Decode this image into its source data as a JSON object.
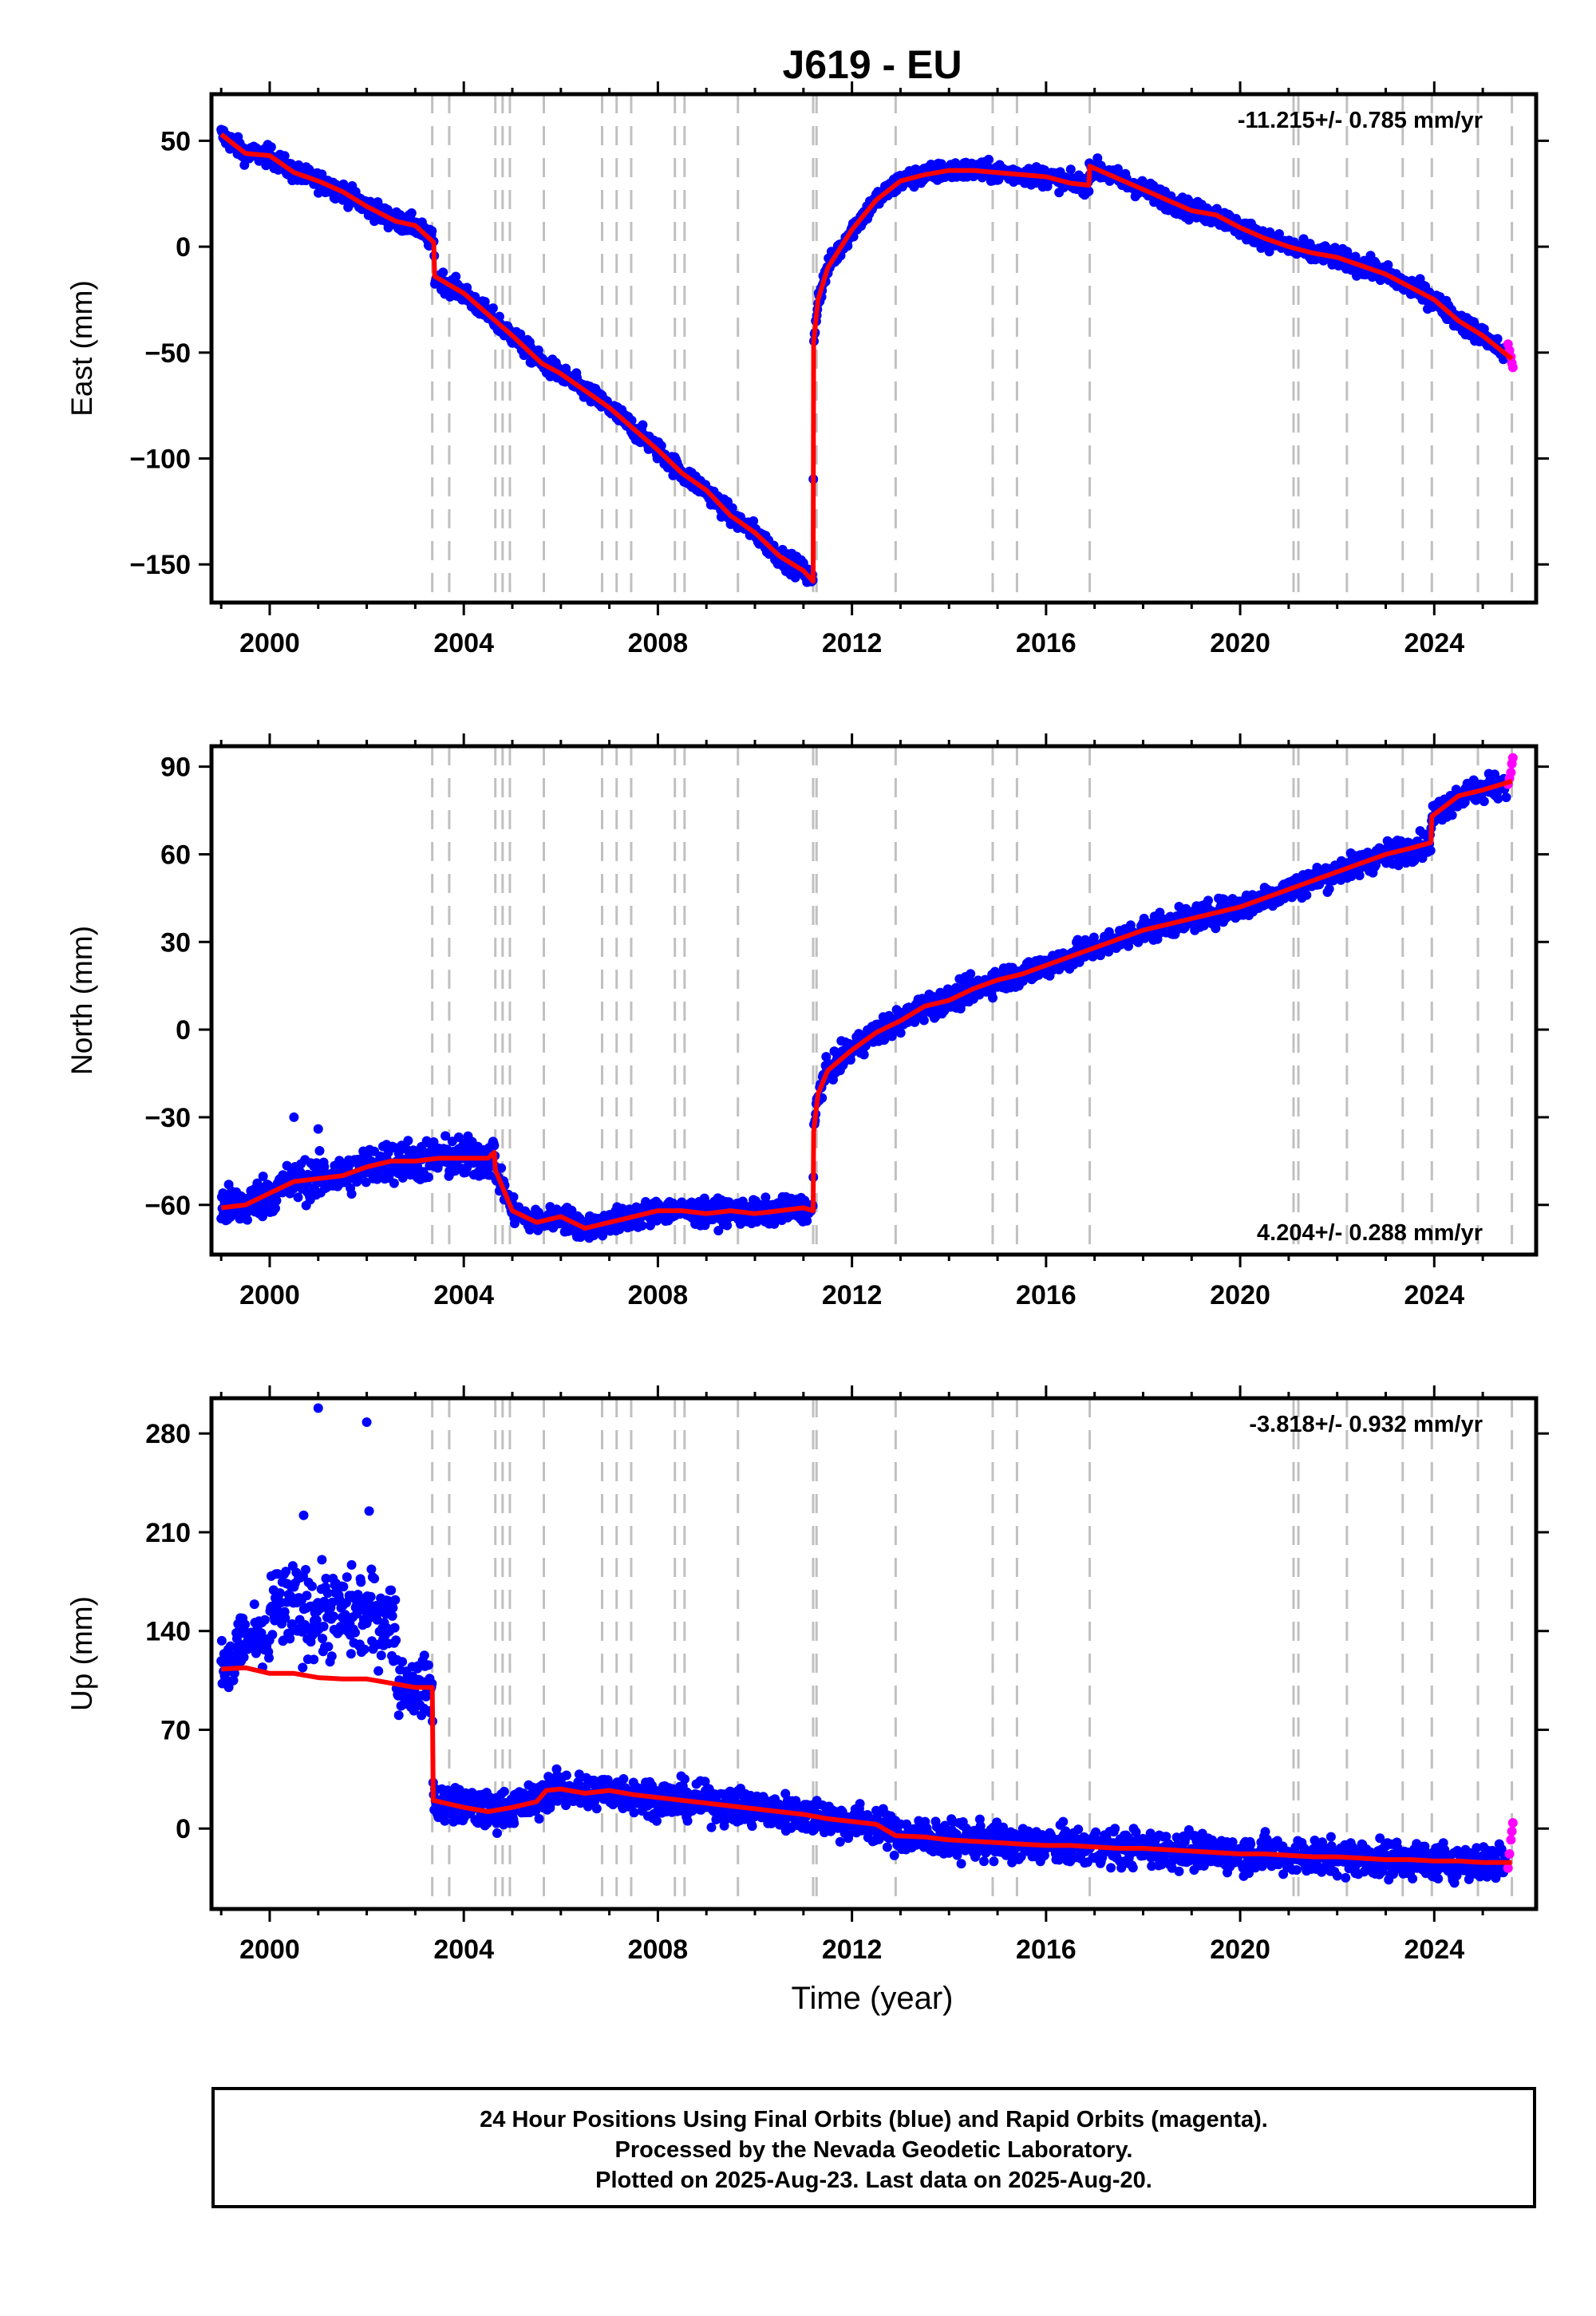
{
  "title": "J619 - EU",
  "xlabel": "Time (year)",
  "footer": {
    "line1": "24 Hour Positions Using Final Orbits (blue) and Rapid Orbits (magenta).",
    "line2": "Processed by the Nevada Geodetic Laboratory.",
    "line3": "Plotted on 2025-Aug-23. Last data on 2025-Aug-20."
  },
  "colors": {
    "final_orbits": "#0000ff",
    "rapid_orbits": "#ff00ff",
    "model": "#ff0000",
    "event_lines": "#c0c0c0"
  },
  "chart_data": [
    {
      "type": "scatter",
      "name": "east",
      "ylabel": "East (mm)",
      "rate": "-11.215+/- 0.785 mm/yr",
      "rate_position": "top-right",
      "xlim": [
        1998.8,
        2026.1
      ],
      "ylim": [
        -168,
        72
      ],
      "yticks": [
        50,
        0,
        -50,
        -100,
        -150
      ],
      "xticks": [
        2000,
        2004,
        2008,
        2012,
        2016,
        2020,
        2024
      ],
      "event_lines": [
        2003.35,
        2003.7,
        2004.65,
        2004.8,
        2004.95,
        2005.65,
        2006.85,
        2007.15,
        2007.45,
        2008.35,
        2008.55,
        2009.65,
        2011.2,
        2011.27,
        2012.9,
        2014.9,
        2015.4,
        2016.9,
        2021.1,
        2021.2,
        2022.2,
        2023.35,
        2023.95,
        2024.9,
        2025.6
      ],
      "model": [
        [
          1999.0,
          53
        ],
        [
          1999.5,
          44
        ],
        [
          2000.0,
          43
        ],
        [
          2000.5,
          35
        ],
        [
          2001.0,
          31
        ],
        [
          2001.5,
          26
        ],
        [
          2002.0,
          19
        ],
        [
          2002.6,
          12
        ],
        [
          2003.0,
          10
        ],
        [
          2003.38,
          2
        ],
        [
          2003.4,
          -14
        ],
        [
          2004.0,
          -22
        ],
        [
          2004.5,
          -32
        ],
        [
          2005.0,
          -42
        ],
        [
          2005.6,
          -55
        ],
        [
          2006.0,
          -60
        ],
        [
          2006.5,
          -68
        ],
        [
          2007.0,
          -76
        ],
        [
          2007.5,
          -86
        ],
        [
          2008.0,
          -96
        ],
        [
          2008.5,
          -107
        ],
        [
          2009.0,
          -115
        ],
        [
          2009.5,
          -127
        ],
        [
          2010.0,
          -135
        ],
        [
          2010.5,
          -146
        ],
        [
          2011.0,
          -153
        ],
        [
          2011.2,
          -158
        ],
        [
          2011.21,
          -45
        ],
        [
          2011.3,
          -25
        ],
        [
          2011.5,
          -10
        ],
        [
          2012.0,
          8
        ],
        [
          2012.5,
          22
        ],
        [
          2013.0,
          31
        ],
        [
          2013.5,
          34
        ],
        [
          2014.0,
          36
        ],
        [
          2014.5,
          36
        ],
        [
          2015.0,
          35
        ],
        [
          2015.5,
          34
        ],
        [
          2016.0,
          33
        ],
        [
          2016.5,
          30
        ],
        [
          2016.88,
          29
        ],
        [
          2016.9,
          38
        ],
        [
          2017.5,
          32
        ],
        [
          2018.0,
          27
        ],
        [
          2018.5,
          22
        ],
        [
          2019.0,
          17
        ],
        [
          2019.5,
          15
        ],
        [
          2020.0,
          9
        ],
        [
          2020.5,
          4
        ],
        [
          2021.0,
          0
        ],
        [
          2021.5,
          -3
        ],
        [
          2022.0,
          -5
        ],
        [
          2022.5,
          -9
        ],
        [
          2023.0,
          -13
        ],
        [
          2023.5,
          -19
        ],
        [
          2024.0,
          -25
        ],
        [
          2024.5,
          -35
        ],
        [
          2025.0,
          -42
        ],
        [
          2025.6,
          -53
        ]
      ],
      "rapid_points": [
        [
          2025.52,
          -46
        ],
        [
          2025.55,
          -49
        ],
        [
          2025.58,
          -52
        ],
        [
          2025.6,
          -55
        ],
        [
          2025.62,
          -57
        ]
      ]
    },
    {
      "type": "scatter",
      "name": "north",
      "ylabel": "North (mm)",
      "rate": "4.204+/- 0.288 mm/yr",
      "rate_position": "bottom-right",
      "xlim": [
        1998.8,
        2026.1
      ],
      "ylim": [
        -77,
        97
      ],
      "yticks": [
        90,
        60,
        30,
        0,
        -30,
        -60
      ],
      "xticks": [
        2000,
        2004,
        2008,
        2012,
        2016,
        2020,
        2024
      ],
      "event_lines": [
        2003.35,
        2003.7,
        2004.65,
        2004.8,
        2004.95,
        2005.65,
        2006.85,
        2007.15,
        2007.45,
        2008.35,
        2008.55,
        2009.65,
        2011.2,
        2011.27,
        2012.9,
        2014.9,
        2015.4,
        2016.9,
        2021.1,
        2021.2,
        2022.2,
        2023.35,
        2023.95,
        2024.9,
        2025.6
      ],
      "model": [
        [
          1999.0,
          -61
        ],
        [
          1999.5,
          -60
        ],
        [
          2000.0,
          -56
        ],
        [
          2000.5,
          -52
        ],
        [
          2001.0,
          -51
        ],
        [
          2001.5,
          -50
        ],
        [
          2002.0,
          -47
        ],
        [
          2002.5,
          -45
        ],
        [
          2003.0,
          -45
        ],
        [
          2003.5,
          -44
        ],
        [
          2004.0,
          -44
        ],
        [
          2004.5,
          -44
        ],
        [
          2004.63,
          -42
        ],
        [
          2004.65,
          -48
        ],
        [
          2005.0,
          -62
        ],
        [
          2005.5,
          -66
        ],
        [
          2006.0,
          -64
        ],
        [
          2006.5,
          -68
        ],
        [
          2007.0,
          -66
        ],
        [
          2007.5,
          -64
        ],
        [
          2008.0,
          -62
        ],
        [
          2008.5,
          -62
        ],
        [
          2009.0,
          -63
        ],
        [
          2009.5,
          -62
        ],
        [
          2010.0,
          -63
        ],
        [
          2010.5,
          -62
        ],
        [
          2011.0,
          -61
        ],
        [
          2011.2,
          -62
        ],
        [
          2011.21,
          -35
        ],
        [
          2011.3,
          -22
        ],
        [
          2011.5,
          -14
        ],
        [
          2012.0,
          -7
        ],
        [
          2012.5,
          -1
        ],
        [
          2013.0,
          3
        ],
        [
          2013.5,
          8
        ],
        [
          2014.0,
          10
        ],
        [
          2014.5,
          14
        ],
        [
          2015.0,
          17
        ],
        [
          2015.5,
          19
        ],
        [
          2016.0,
          22
        ],
        [
          2016.5,
          25
        ],
        [
          2017.0,
          28
        ],
        [
          2017.5,
          31
        ],
        [
          2018.0,
          34
        ],
        [
          2018.5,
          36
        ],
        [
          2019.0,
          38
        ],
        [
          2019.5,
          40
        ],
        [
          2020.0,
          42
        ],
        [
          2020.5,
          45
        ],
        [
          2021.0,
          48
        ],
        [
          2021.5,
          51
        ],
        [
          2022.0,
          54
        ],
        [
          2022.5,
          57
        ],
        [
          2023.0,
          60
        ],
        [
          2023.5,
          62
        ],
        [
          2023.93,
          64
        ],
        [
          2023.95,
          73
        ],
        [
          2024.5,
          80
        ],
        [
          2025.0,
          82
        ],
        [
          2025.6,
          85
        ]
      ],
      "rapid_points": [
        [
          2025.52,
          84
        ],
        [
          2025.55,
          86
        ],
        [
          2025.58,
          88
        ],
        [
          2025.6,
          91
        ],
        [
          2025.62,
          93
        ]
      ]
    },
    {
      "type": "scatter",
      "name": "up",
      "ylabel": "Up (mm)",
      "rate": "-3.818+/- 0.932 mm/yr",
      "rate_position": "top-right",
      "xlim": [
        1998.8,
        2026.1
      ],
      "ylim": [
        -57,
        305
      ],
      "yticks": [
        280,
        210,
        140,
        70,
        0
      ],
      "xticks": [
        2000,
        2004,
        2008,
        2012,
        2016,
        2020,
        2024
      ],
      "event_lines": [
        2003.35,
        2003.7,
        2004.65,
        2004.8,
        2004.95,
        2005.65,
        2006.85,
        2007.15,
        2007.45,
        2008.35,
        2008.55,
        2009.65,
        2011.2,
        2011.27,
        2012.9,
        2014.9,
        2015.4,
        2016.9,
        2021.1,
        2021.2,
        2022.2,
        2023.35,
        2023.95,
        2024.9,
        2025.6
      ],
      "model": [
        [
          1999.0,
          113
        ],
        [
          1999.5,
          114
        ],
        [
          2000.0,
          110
        ],
        [
          2000.5,
          110
        ],
        [
          2001.0,
          107
        ],
        [
          2001.5,
          106
        ],
        [
          2002.0,
          106
        ],
        [
          2002.5,
          103
        ],
        [
          2003.0,
          100
        ],
        [
          2003.35,
          100
        ],
        [
          2003.37,
          20
        ],
        [
          2004.0,
          15
        ],
        [
          2004.5,
          12
        ],
        [
          2005.0,
          15
        ],
        [
          2005.5,
          19
        ],
        [
          2005.7,
          27
        ],
        [
          2006.0,
          28
        ],
        [
          2006.5,
          25
        ],
        [
          2007.0,
          27
        ],
        [
          2007.5,
          24
        ],
        [
          2008.0,
          22
        ],
        [
          2008.5,
          20
        ],
        [
          2009.0,
          18
        ],
        [
          2009.5,
          16
        ],
        [
          2010.0,
          14
        ],
        [
          2010.5,
          12
        ],
        [
          2011.0,
          10
        ],
        [
          2011.5,
          7
        ],
        [
          2012.0,
          5
        ],
        [
          2012.5,
          3
        ],
        [
          2012.9,
          -5
        ],
        [
          2013.5,
          -6
        ],
        [
          2014.0,
          -8
        ],
        [
          2014.5,
          -9
        ],
        [
          2015.0,
          -10
        ],
        [
          2015.5,
          -11
        ],
        [
          2016.0,
          -12
        ],
        [
          2016.5,
          -12
        ],
        [
          2017.0,
          -13
        ],
        [
          2017.5,
          -14
        ],
        [
          2018.0,
          -14
        ],
        [
          2018.5,
          -15
        ],
        [
          2019.0,
          -16
        ],
        [
          2019.5,
          -17
        ],
        [
          2020.0,
          -18
        ],
        [
          2020.5,
          -18
        ],
        [
          2021.0,
          -19
        ],
        [
          2021.5,
          -20
        ],
        [
          2022.0,
          -20
        ],
        [
          2022.5,
          -21
        ],
        [
          2023.0,
          -22
        ],
        [
          2023.5,
          -22
        ],
        [
          2024.0,
          -23
        ],
        [
          2024.5,
          -23
        ],
        [
          2025.0,
          -24
        ],
        [
          2025.6,
          -24
        ]
      ],
      "rapid_points": [
        [
          2025.52,
          -28
        ],
        [
          2025.55,
          -18
        ],
        [
          2025.58,
          -8
        ],
        [
          2025.6,
          -2
        ],
        [
          2025.62,
          4
        ]
      ]
    }
  ]
}
